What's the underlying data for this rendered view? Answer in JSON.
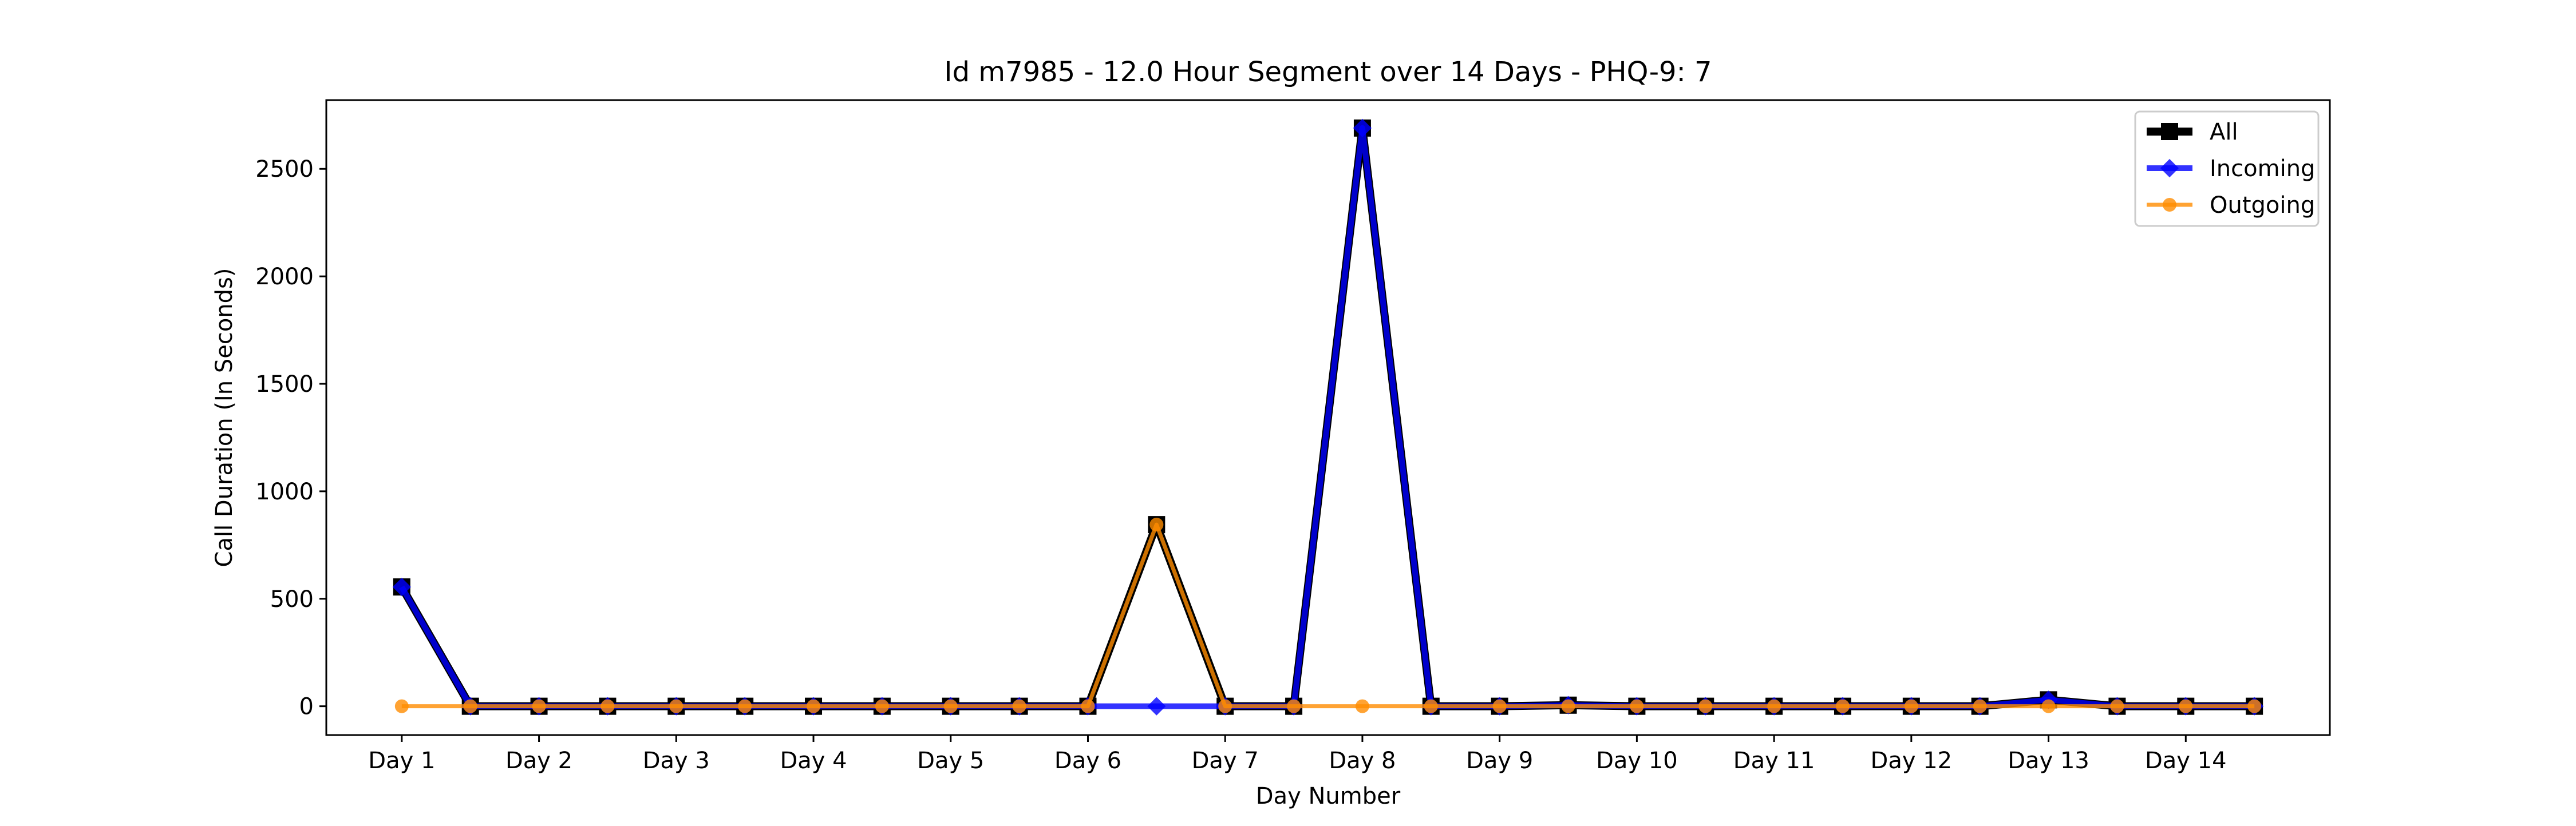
{
  "chart_data": {
    "type": "line",
    "title": "Id m7985 - 12.0 Hour Segment over 14 Days - PHQ-9: 7",
    "xlabel": "Day Number",
    "ylabel": "Call Duration (In Seconds)",
    "x": [
      1,
      1.5,
      2,
      2.5,
      3,
      3.5,
      4,
      4.5,
      5,
      5.5,
      6,
      6.5,
      7,
      7.5,
      8,
      8.5,
      9,
      9.5,
      10,
      10.5,
      11,
      11.5,
      12,
      12.5,
      13,
      13.5,
      14,
      14.5
    ],
    "xticks": [
      1,
      2,
      3,
      4,
      5,
      6,
      7,
      8,
      9,
      10,
      11,
      12,
      13,
      14
    ],
    "xtick_labels": [
      "Day 1",
      "Day 2",
      "Day 3",
      "Day 4",
      "Day 5",
      "Day 6",
      "Day 7",
      "Day 8",
      "Day 9",
      "Day 10",
      "Day 11",
      "Day 12",
      "Day 13",
      "Day 14"
    ],
    "xlim": [
      0.45,
      15.05
    ],
    "yticks": [
      0,
      500,
      1000,
      1500,
      2000,
      2500
    ],
    "ylim": [
      -134,
      2820
    ],
    "grid": false,
    "legend_position": "top-right",
    "series": [
      {
        "name": "All",
        "color": "#000000",
        "marker": "square",
        "values": [
          555,
          0,
          0,
          0,
          0,
          0,
          0,
          0,
          0,
          0,
          0,
          845,
          0,
          0,
          2690,
          0,
          0,
          5,
          0,
          0,
          0,
          0,
          0,
          0,
          30,
          0,
          0,
          0
        ]
      },
      {
        "name": "Incoming",
        "color": "#0000ff",
        "marker": "diamond",
        "values": [
          555,
          0,
          0,
          0,
          0,
          0,
          0,
          0,
          0,
          0,
          0,
          0,
          0,
          0,
          2690,
          0,
          0,
          5,
          0,
          0,
          0,
          0,
          0,
          0,
          30,
          0,
          0,
          0
        ]
      },
      {
        "name": "Outgoing",
        "color": "#ff8c00",
        "marker": "circle",
        "values": [
          0,
          0,
          0,
          0,
          0,
          0,
          0,
          0,
          0,
          0,
          0,
          845,
          0,
          0,
          0,
          0,
          0,
          0,
          0,
          0,
          0,
          0,
          0,
          0,
          0,
          0,
          0,
          0
        ]
      }
    ]
  }
}
